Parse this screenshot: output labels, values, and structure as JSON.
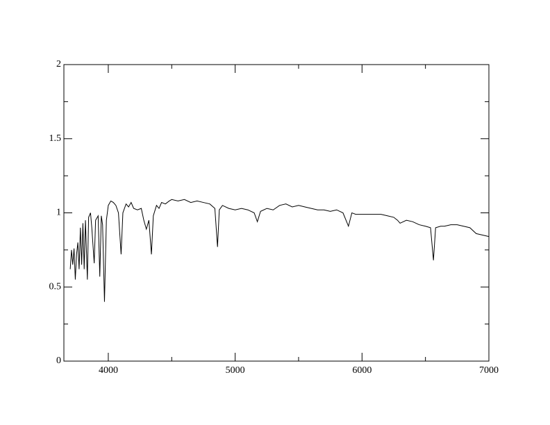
{
  "chart_data": {
    "type": "line",
    "x": [
      3700,
      3710,
      3720,
      3730,
      3740,
      3750,
      3760,
      3770,
      3780,
      3790,
      3800,
      3810,
      3820,
      3835,
      3845,
      3860,
      3870,
      3889,
      3900,
      3920,
      3933,
      3945,
      3955,
      3970,
      3985,
      4000,
      4020,
      4040,
      4060,
      4080,
      4101,
      4115,
      4140,
      4160,
      4180,
      4200,
      4230,
      4260,
      4280,
      4300,
      4320,
      4340,
      4355,
      4380,
      4400,
      4420,
      4450,
      4480,
      4500,
      4550,
      4600,
      4650,
      4700,
      4750,
      4800,
      4840,
      4861,
      4875,
      4900,
      4950,
      5000,
      5050,
      5100,
      5150,
      5175,
      5200,
      5250,
      5300,
      5350,
      5400,
      5450,
      5500,
      5550,
      5600,
      5650,
      5700,
      5750,
      5800,
      5850,
      5893,
      5920,
      5950,
      6000,
      6050,
      6100,
      6150,
      6200,
      6250,
      6280,
      6300,
      6350,
      6400,
      6450,
      6500,
      6540,
      6563,
      6580,
      6620,
      6650,
      6700,
      6750,
      6800,
      6850,
      6900,
      6950,
      7000
    ],
    "series": [
      {
        "color": "#000000",
        "values": [
          0.62,
          0.75,
          0.65,
          0.76,
          0.55,
          0.72,
          0.8,
          0.62,
          0.9,
          0.65,
          0.93,
          0.62,
          0.95,
          0.55,
          0.97,
          1.0,
          0.9,
          0.66,
          0.95,
          0.98,
          0.57,
          0.98,
          0.92,
          0.4,
          0.95,
          1.05,
          1.08,
          1.07,
          1.05,
          1.0,
          0.72,
          1.0,
          1.06,
          1.04,
          1.07,
          1.03,
          1.02,
          1.03,
          0.95,
          0.89,
          0.95,
          0.72,
          0.98,
          1.05,
          1.03,
          1.07,
          1.06,
          1.08,
          1.09,
          1.08,
          1.09,
          1.07,
          1.08,
          1.07,
          1.06,
          1.03,
          0.77,
          1.02,
          1.05,
          1.03,
          1.02,
          1.03,
          1.02,
          1.0,
          0.94,
          1.01,
          1.03,
          1.02,
          1.05,
          1.06,
          1.04,
          1.05,
          1.04,
          1.03,
          1.02,
          1.02,
          1.01,
          1.02,
          1.0,
          0.91,
          1.0,
          0.99,
          0.99,
          0.99,
          0.99,
          0.99,
          0.98,
          0.97,
          0.95,
          0.93,
          0.95,
          0.94,
          0.92,
          0.91,
          0.9,
          0.68,
          0.9,
          0.91,
          0.91,
          0.92,
          0.92,
          0.91,
          0.9,
          0.86,
          0.85,
          0.84
        ]
      }
    ],
    "xlim": [
      3650,
      7000
    ],
    "xticks": [
      4000,
      5000,
      6000,
      7000
    ],
    "xminor_ticks": [
      4500,
      5500,
      6500
    ],
    "ylim": [
      0,
      2
    ],
    "yticks": [
      0,
      0.5,
      1,
      1.5,
      2
    ],
    "yminor_ticks": [
      0.25,
      0.75,
      1.25,
      1.75
    ]
  }
}
